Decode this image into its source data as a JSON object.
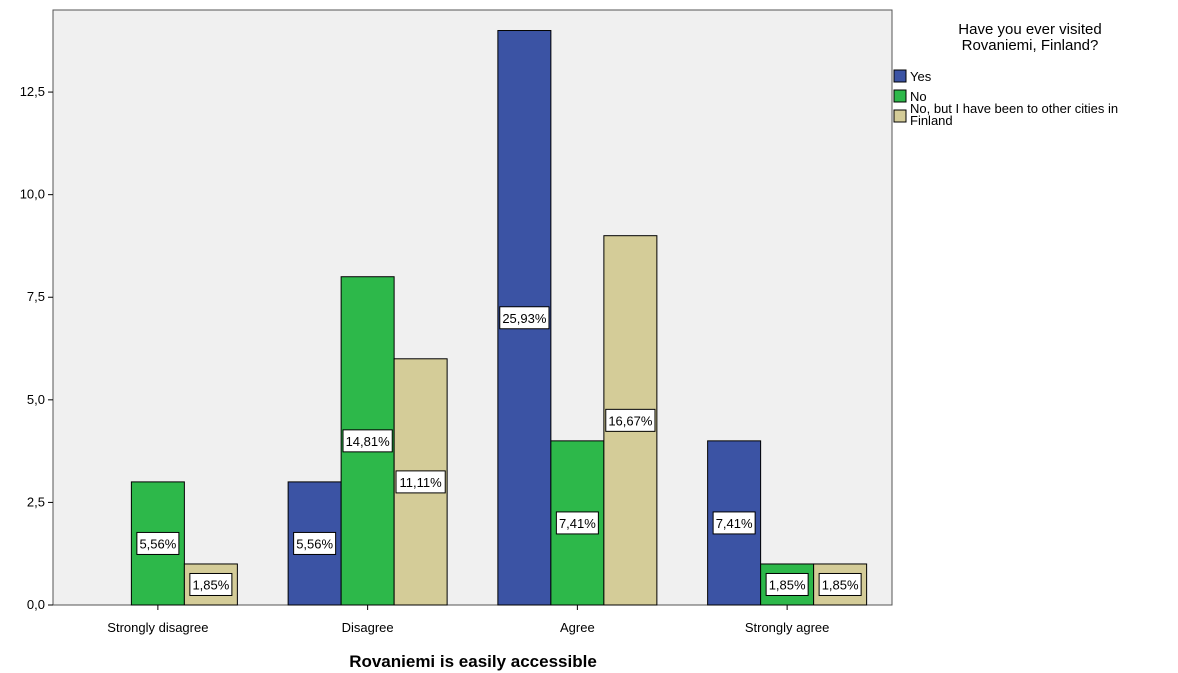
{
  "chart_data": {
    "type": "bar",
    "title": "",
    "xlabel": "Rovaniemi is easily accessible",
    "ylabel": "",
    "ylim": [
      0,
      14.5
    ],
    "yticks": [
      0,
      2.5,
      5,
      7.5,
      10,
      12.5
    ],
    "ytick_labels": [
      "0,0",
      "2,5",
      "5,0",
      "7,5",
      "10,0",
      "12,5"
    ],
    "grid": false,
    "legend_position": "right",
    "legend_title": "Have you ever visited Rovaniemi, Finland?",
    "categories": [
      "Strongly disagree",
      "Disagree",
      "Agree",
      "Strongly agree"
    ],
    "series": [
      {
        "name": "Yes",
        "color": "#3b53a4",
        "values": [
          0,
          3,
          14,
          4
        ],
        "labels": [
          "",
          "5,56%",
          "25,93%",
          "7,41%"
        ]
      },
      {
        "name": "No",
        "color": "#2db84a",
        "values": [
          3,
          8,
          4,
          1
        ],
        "labels": [
          "5,56%",
          "14,81%",
          "7,41%",
          "1,85%"
        ]
      },
      {
        "name": "No, but I have been to other cities in Finland",
        "color": "#d4cc98",
        "values": [
          1,
          6,
          9,
          1
        ],
        "labels": [
          "1,85%",
          "11,11%",
          "16,67%",
          "1,85%"
        ]
      }
    ]
  }
}
